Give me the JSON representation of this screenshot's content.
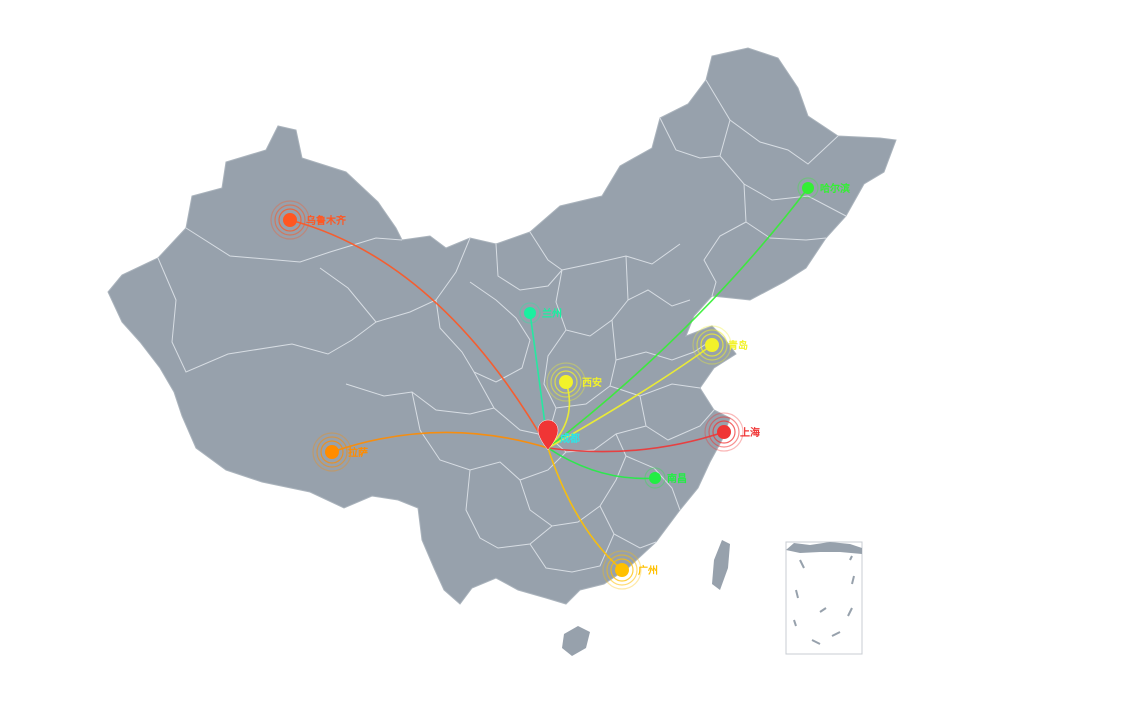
{
  "map": {
    "land_color": "#97a1ac",
    "border_color": "#dfe4ea",
    "inset_border_color": "#c8cdd3"
  },
  "hub": {
    "name": "成都",
    "color": "#f03535",
    "label_color": "#2ee6e6"
  },
  "cities": [
    {
      "id": "urumqi",
      "name": "乌鲁木齐",
      "color": "#ff5722",
      "ring": "large"
    },
    {
      "id": "lhasa",
      "name": "拉萨",
      "color": "#ff8c00",
      "ring": "large"
    },
    {
      "id": "lanzhou",
      "name": "兰州",
      "color": "#19f0a0",
      "ring": "small"
    },
    {
      "id": "xian",
      "name": "西安",
      "color": "#f2f22a",
      "ring": "large"
    },
    {
      "id": "harbin",
      "name": "哈尔滨",
      "color": "#33f033",
      "ring": "small"
    },
    {
      "id": "qingdao",
      "name": "青岛",
      "color": "#f2f22a",
      "ring": "large"
    },
    {
      "id": "shanghai",
      "name": "上海",
      "color": "#f03535",
      "ring": "large"
    },
    {
      "id": "nanchang",
      "name": "南昌",
      "color": "#22ee44",
      "ring": "small"
    },
    {
      "id": "guangzhou",
      "name": "广州",
      "color": "#ffc000",
      "ring": "large"
    }
  ]
}
